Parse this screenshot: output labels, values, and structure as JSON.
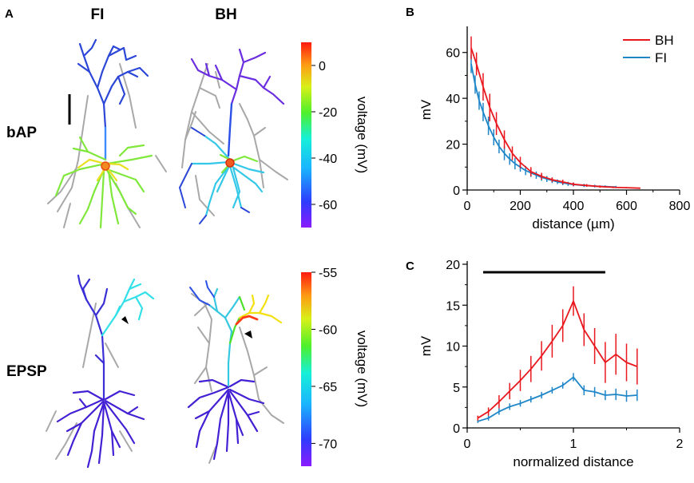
{
  "panels": {
    "a": "A",
    "b": "B",
    "c": "C"
  },
  "columns": {
    "fi": "FI",
    "bh": "BH"
  },
  "rows": {
    "bap": "bAP",
    "epsp": "EPSP"
  },
  "colorbars": {
    "bap": {
      "label": "voltage (mV)",
      "ticks": [
        "0",
        "-20",
        "-40",
        "-60"
      ],
      "range": [
        -70,
        10
      ]
    },
    "epsp": {
      "label": "voltage (mV)",
      "ticks": [
        "-55",
        "-60",
        "-65",
        "-70"
      ],
      "range": [
        -72,
        -55
      ]
    }
  },
  "morphology_colors": {
    "bap_fi": {
      "apical_tuft": "#2c47d8",
      "apical_trunk": "#3d8cff",
      "basal": "#7fe83a",
      "soma": "#f28a1e"
    },
    "bap_bh": {
      "apical_tuft": "#6a2ee0",
      "apical_trunk": "#2b50e8",
      "basal": "#33c8e8",
      "soma": "#f25a1e"
    },
    "epsp_fi": {
      "tuft_active": "#32e0e8",
      "trunk": "#3a2fd6",
      "basal": "#4420d4"
    },
    "epsp_bh": {
      "tuft_active": "#f2e010",
      "hotspot": "#ff3a14",
      "trunk": "#36c8e0",
      "basal": "#4420d4"
    },
    "inactive": "#a8a8a8"
  },
  "chart_data": [
    {
      "id": "B",
      "type": "line",
      "title": "",
      "xlabel": "distance (µm)",
      "ylabel": "mV",
      "xlim": [
        0,
        800
      ],
      "ylim": [
        0,
        70
      ],
      "xticks": [
        "0",
        "200",
        "400",
        "600",
        "800"
      ],
      "yticks": [
        "0",
        "20",
        "40",
        "60"
      ],
      "legend": "top-right",
      "series": [
        {
          "name": "BH",
          "color": "#e8181e",
          "x": [
            15,
            35,
            60,
            85,
            110,
            140,
            170,
            200,
            240,
            280,
            320,
            360,
            400,
            450,
            500,
            550,
            600,
            650
          ],
          "y": [
            62,
            55,
            45,
            36,
            29,
            22,
            16,
            12,
            8,
            6,
            4.5,
            3.5,
            2.5,
            2,
            1.5,
            1.2,
            1,
            0.8
          ],
          "err": [
            5,
            5,
            6,
            6,
            5,
            4,
            3,
            2.5,
            2,
            1.5,
            1,
            1,
            0.8,
            0.6,
            0.5,
            0.4,
            0.3,
            0.3
          ]
        },
        {
          "name": "FI",
          "color": "#1f86c8",
          "x": [
            15,
            30,
            45,
            60,
            80,
            100,
            120,
            140,
            160,
            180,
            200,
            220,
            240,
            260,
            280,
            300,
            320,
            340,
            360,
            380,
            400,
            440,
            480,
            520,
            560
          ],
          "y": [
            55,
            46,
            39,
            34,
            28,
            23,
            19,
            16,
            13.5,
            11.5,
            10,
            8.5,
            7.5,
            6.5,
            5.5,
            4.8,
            4.2,
            3.6,
            3.1,
            2.7,
            2.4,
            2,
            1.7,
            1.5,
            1.3
          ],
          "err": [
            4,
            4,
            4,
            4,
            4,
            3.5,
            3,
            3,
            2.5,
            2.5,
            2,
            2,
            1.8,
            1.6,
            1.5,
            1.3,
            1.2,
            1,
            1,
            0.9,
            0.8,
            0.7,
            0.6,
            0.5,
            0.5
          ]
        }
      ]
    },
    {
      "id": "C",
      "type": "line",
      "title": "",
      "xlabel": "normalized distance",
      "ylabel": "mV",
      "xlim": [
        0,
        2
      ],
      "ylim": [
        0,
        20
      ],
      "xticks": [
        "0",
        "1",
        "2"
      ],
      "yticks": [
        "0",
        "5",
        "10",
        "15",
        "20"
      ],
      "significance_bar": [
        0.15,
        1.3
      ],
      "series": [
        {
          "name": "BH",
          "color": "#e8181e",
          "x": [
            0.1,
            0.2,
            0.3,
            0.4,
            0.5,
            0.6,
            0.7,
            0.8,
            0.9,
            1.0,
            1.1,
            1.2,
            1.3,
            1.4,
            1.5,
            1.6
          ],
          "y": [
            1.2,
            2.0,
            3.2,
            4.5,
            5.8,
            7.2,
            8.8,
            10.6,
            12.5,
            15.5,
            12.0,
            10.0,
            8.0,
            9.0,
            8.0,
            7.5
          ],
          "err": [
            0.3,
            0.5,
            0.8,
            1.0,
            1.3,
            1.6,
            1.8,
            2.0,
            2.0,
            1.8,
            2.0,
            2.2,
            2.5,
            2.5,
            2.3,
            2.2
          ]
        },
        {
          "name": "FI",
          "color": "#1f86c8",
          "x": [
            0.1,
            0.2,
            0.3,
            0.4,
            0.5,
            0.6,
            0.7,
            0.8,
            0.9,
            1.0,
            1.1,
            1.2,
            1.3,
            1.4,
            1.5,
            1.6
          ],
          "y": [
            0.8,
            1.2,
            2.0,
            2.6,
            3.0,
            3.5,
            4.0,
            4.6,
            5.2,
            6.2,
            4.6,
            4.4,
            4.0,
            4.1,
            3.9,
            4.0
          ],
          "err": [
            0.2,
            0.3,
            0.4,
            0.4,
            0.4,
            0.4,
            0.4,
            0.4,
            0.4,
            0.5,
            0.6,
            0.6,
            0.6,
            0.7,
            0.7,
            0.7
          ]
        }
      ]
    }
  ]
}
